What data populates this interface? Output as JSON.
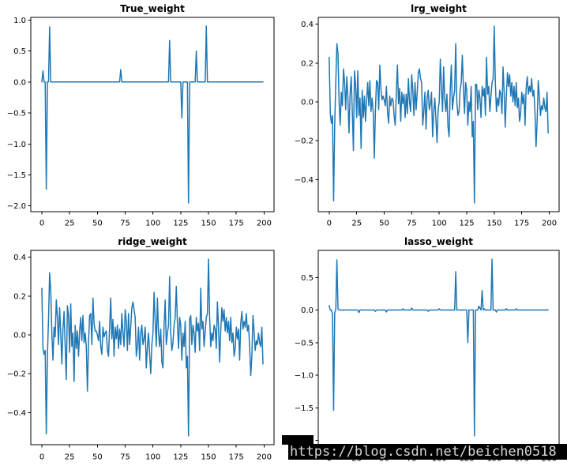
{
  "figure": {
    "background": "#ffffff"
  },
  "watermark": {
    "text": "https://blog.csdn.net/beichen0518",
    "bar_color": "#000000",
    "text_color": "#d6d6d6"
  },
  "chart_data": [
    {
      "key": "true-weight",
      "type": "line",
      "title": "True_weight",
      "xlabel": "",
      "ylabel": "",
      "color": "#1f77b4",
      "grid": false,
      "legend": null,
      "n_points": 200,
      "xlim": [
        -9.95,
        208.95
      ],
      "ylim": [
        -2.0925,
        1.0425
      ],
      "xticks": [
        0,
        25,
        50,
        75,
        100,
        125,
        150,
        175,
        200
      ],
      "yticks": [
        1.0,
        0.5,
        0.0,
        -0.5,
        -1.0,
        -1.5,
        -2.0
      ],
      "values": [
        0,
        0.18,
        0,
        0,
        -1.73,
        0,
        0,
        0.89,
        0,
        0,
        0,
        0,
        0,
        0,
        0,
        0,
        0,
        0,
        0,
        0,
        0,
        0,
        0,
        0,
        0,
        0,
        0,
        0,
        0,
        0,
        0,
        0,
        0,
        0,
        0,
        0,
        0,
        0,
        0,
        0,
        0,
        0,
        0,
        0,
        0,
        0,
        0,
        0,
        0,
        0,
        0,
        0,
        0,
        0,
        0,
        0,
        0,
        0,
        0,
        0,
        0,
        0,
        0,
        0,
        0,
        0,
        0,
        0,
        0,
        0,
        0,
        0.2,
        0,
        0,
        0,
        0,
        0,
        0,
        0,
        0,
        0,
        0,
        0,
        0,
        0,
        0,
        0,
        0,
        0,
        0,
        0,
        0,
        0,
        0,
        0,
        0,
        0,
        0,
        0,
        0,
        0,
        0,
        0,
        0,
        0,
        0,
        0,
        0,
        0,
        0,
        0,
        0,
        0,
        0,
        0,
        0.67,
        0,
        0,
        0,
        0,
        0,
        0,
        0,
        0,
        0,
        0,
        -0.58,
        0,
        0,
        0,
        0,
        0,
        -1.95,
        0,
        0,
        0,
        0,
        0,
        0,
        0.5,
        0,
        0,
        0,
        0,
        0,
        0,
        0,
        0,
        0.9,
        0,
        0,
        0,
        0,
        0,
        0,
        0,
        0,
        0,
        0,
        0,
        0,
        0,
        0,
        0,
        0,
        0,
        0,
        0,
        0,
        0,
        0,
        0,
        0,
        0,
        0,
        0,
        0,
        0,
        0,
        0,
        0,
        0,
        0,
        0,
        0,
        0,
        0,
        0,
        0,
        0,
        0,
        0,
        0,
        0,
        0,
        0,
        0,
        0,
        0,
        0
      ]
    },
    {
      "key": "lrg-weight",
      "type": "line",
      "title": "lrg_weight",
      "xlabel": "",
      "ylabel": "",
      "color": "#1f77b4",
      "grid": false,
      "legend": null,
      "n_points": 200,
      "xlim": [
        -9.95,
        208.95
      ],
      "ylim": [
        -0.5655,
        0.4355
      ],
      "xticks": [
        0,
        25,
        50,
        75,
        100,
        125,
        150,
        175,
        200
      ],
      "yticks": [
        0.4,
        0.2,
        0.0,
        -0.2,
        -0.4
      ],
      "values": [
        0.23,
        -0.06,
        -0.11,
        -0.07,
        -0.51,
        -0.12,
        0.1,
        0.3,
        0.25,
        0.0,
        -0.12,
        0.05,
        -0.02,
        0.17,
        0.1,
        -0.04,
        0.13,
        0.02,
        -0.16,
        0.04,
        0.13,
        -0.05,
        -0.25,
        0.16,
        0.09,
        -0.08,
        0.16,
        -0.07,
        0.02,
        -0.24,
        0.06,
        -0.08,
        0.03,
        -0.1,
        0.01,
        0.1,
        -0.02,
        0.11,
        -0.05,
        0.02,
        -0.05,
        -0.29,
        -0.05,
        0.11,
        0.1,
        -0.04,
        0.19,
        0.07,
        0.01,
        0.03,
        0.01,
        -0.02,
        0.08,
        -0.05,
        -0.11,
        0.03,
        -0.02,
        0.02,
        0.01,
        -0.07,
        -0.12,
        0.05,
        0.19,
        -0.01,
        0.07,
        -0.1,
        0.05,
        -0.01,
        0.04,
        -0.08,
        0.04,
        -0.06,
        0.12,
        0.0,
        -0.05,
        0.14,
        0.06,
        -0.07,
        0.1,
        -0.04,
        0.05,
        0.15,
        0.17,
        0.12,
        0.1,
        -0.12,
        -0.05,
        0.05,
        -0.14,
        0.02,
        0.06,
        -0.04,
        -0.01,
        0.05,
        -0.18,
        -0.05,
        0.02,
        -0.09,
        -0.21,
        -0.04,
        0.0,
        0.22,
        0.08,
        -0.05,
        0.18,
        0.02,
        -0.05,
        0.04,
        -0.13,
        -0.18,
        0.06,
        0.19,
        -0.04,
        0.02,
        0.06,
        0.3,
        0.0,
        -0.07,
        -0.05,
        0.06,
        0.1,
        0.24,
        0.07,
        -0.06,
        0.1,
        0.06,
        -0.12,
        0.0,
        -0.05,
        0.08,
        -0.18,
        -0.1,
        -0.52,
        0.09,
        0.09,
        -0.04,
        0.06,
        0.02,
        -0.08,
        0.08,
        0.03,
        0.07,
        -0.07,
        0.23,
        0.04,
        0.08,
        -0.05,
        0.03,
        0.1,
        0.12,
        0.39,
        0.1,
        -0.05,
        0.02,
        -0.02,
        0.06,
        0.04,
        -0.06,
        0.18,
        0.05,
        -0.13,
        0.03,
        0.15,
        0.08,
        0.14,
        0.03,
        0.1,
        0.0,
        0.08,
        -0.02,
        0.1,
        -0.03,
        0.02,
        -0.1,
        -0.06,
        0.05,
        -0.01,
        0.04,
        -0.12,
        0.07,
        0.13,
        0.04,
        0.08,
        0.05,
        0.12,
        0.03,
        0.06,
        -0.05,
        -0.23,
        -0.1,
        0.11,
        0.03,
        -0.07,
        -0.02,
        -0.04,
        0.02,
        -0.03,
        -0.05,
        0.05,
        -0.16
      ]
    },
    {
      "key": "ridge-weight",
      "type": "line",
      "title": "ridge_weight",
      "xlabel": "",
      "ylabel": "",
      "color": "#1f77b4",
      "grid": false,
      "legend": null,
      "n_points": 200,
      "xlim": [
        -9.95,
        208.95
      ],
      "ylim": [
        -0.5655,
        0.4355
      ],
      "xticks": [
        0,
        25,
        50,
        75,
        100,
        125,
        150,
        175,
        200
      ],
      "yticks": [
        0.4,
        0.2,
        0.0,
        -0.2,
        -0.4
      ],
      "values": [
        0.24,
        -0.07,
        -0.1,
        -0.08,
        -0.51,
        -0.11,
        0.08,
        0.32,
        0.23,
        0.01,
        -0.13,
        0.04,
        -0.01,
        0.18,
        0.09,
        -0.05,
        0.14,
        0.01,
        -0.15,
        0.03,
        0.12,
        -0.06,
        -0.23,
        0.15,
        0.1,
        -0.09,
        0.16,
        -0.06,
        0.01,
        -0.24,
        0.05,
        -0.07,
        0.02,
        -0.11,
        0.02,
        0.09,
        -0.03,
        0.1,
        -0.04,
        0.01,
        -0.06,
        -0.29,
        -0.04,
        0.1,
        0.11,
        -0.05,
        0.19,
        0.06,
        0.02,
        0.02,
        0.0,
        -0.03,
        0.07,
        -0.06,
        -0.1,
        0.04,
        -0.01,
        0.01,
        0.02,
        -0.08,
        -0.11,
        0.04,
        0.19,
        -0.02,
        0.08,
        -0.11,
        0.04,
        -0.02,
        0.05,
        -0.07,
        0.03,
        -0.05,
        0.11,
        0.01,
        -0.06,
        0.13,
        0.07,
        -0.08,
        0.11,
        -0.05,
        0.04,
        0.14,
        0.17,
        0.13,
        0.09,
        -0.11,
        -0.06,
        0.04,
        -0.13,
        0.01,
        0.05,
        -0.05,
        -0.02,
        0.04,
        -0.17,
        -0.06,
        0.01,
        -0.1,
        -0.2,
        -0.05,
        0.01,
        0.22,
        0.07,
        -0.06,
        0.19,
        0.01,
        -0.06,
        0.03,
        -0.14,
        -0.17,
        0.05,
        0.18,
        -0.05,
        0.01,
        0.05,
        0.3,
        0.01,
        -0.08,
        -0.04,
        0.05,
        0.09,
        0.25,
        0.06,
        -0.07,
        0.09,
        0.05,
        -0.13,
        0.01,
        -0.06,
        0.07,
        -0.17,
        -0.11,
        -0.52,
        0.08,
        0.1,
        -0.05,
        0.05,
        0.01,
        -0.09,
        0.09,
        0.02,
        0.06,
        -0.08,
        0.24,
        0.03,
        0.07,
        -0.06,
        0.02,
        0.09,
        0.11,
        0.39,
        0.09,
        -0.06,
        0.01,
        -0.03,
        0.05,
        0.03,
        -0.07,
        0.17,
        0.04,
        -0.14,
        0.02,
        0.14,
        0.07,
        0.13,
        0.02,
        0.09,
        0.01,
        0.07,
        -0.03,
        0.09,
        -0.04,
        0.01,
        -0.11,
        -0.07,
        0.04,
        -0.02,
        0.03,
        -0.13,
        0.06,
        0.12,
        0.03,
        0.07,
        0.04,
        0.11,
        0.02,
        0.05,
        -0.06,
        -0.21,
        -0.11,
        0.1,
        0.02,
        -0.08,
        -0.03,
        -0.05,
        0.01,
        -0.04,
        -0.06,
        0.04,
        -0.15
      ]
    },
    {
      "key": "lasso-weight",
      "type": "line",
      "title": "lasso_weight",
      "xlabel": "",
      "ylabel": "",
      "color": "#1f77b4",
      "grid": false,
      "legend": null,
      "n_points": 200,
      "xlim": [
        -9.95,
        208.95
      ],
      "ylim": [
        -2.0655,
        0.9155
      ],
      "xticks": [
        0,
        25,
        50,
        75,
        100,
        125,
        150,
        175,
        200
      ],
      "yticks": [
        0.5,
        0.0,
        -0.5,
        -1.0,
        -1.5,
        -2.0
      ],
      "values": [
        0.07,
        0,
        0,
        -0.06,
        -1.54,
        -0.04,
        0,
        0.77,
        0.02,
        0,
        0,
        0,
        0,
        0,
        0,
        0,
        0,
        0,
        0,
        0,
        0,
        0,
        0,
        0,
        0,
        0,
        0,
        -0.04,
        0,
        0,
        0,
        0,
        0,
        0,
        0,
        0,
        0,
        0,
        0,
        0,
        0,
        0,
        -0.02,
        0,
        0,
        0,
        0,
        0,
        0,
        0,
        0,
        0,
        -0.03,
        0,
        0,
        0,
        0,
        0,
        0,
        0,
        0,
        0,
        0,
        0,
        0,
        0,
        0,
        0.02,
        0,
        0,
        0,
        0,
        0,
        0,
        0,
        0.03,
        0,
        0,
        0,
        0,
        0,
        0,
        0,
        0,
        0,
        0,
        0,
        0,
        0,
        0,
        -0.02,
        0,
        0,
        0,
        0,
        0,
        0,
        0,
        0,
        0,
        0.02,
        0,
        0,
        0,
        0,
        0,
        0,
        0,
        0,
        0,
        0,
        0,
        0,
        0,
        0,
        0.59,
        0,
        0,
        0,
        0,
        0,
        0,
        0,
        0,
        0,
        0,
        -0.5,
        0,
        0,
        0,
        0,
        0,
        -1.93,
        0,
        0,
        0,
        0.06,
        0.03,
        0,
        0.3,
        0,
        0.02,
        0,
        0,
        0,
        0,
        0,
        0,
        0.78,
        0,
        0,
        0,
        -0.03,
        0,
        0,
        0,
        0,
        0,
        0,
        0,
        0,
        0.02,
        0,
        0,
        0,
        0,
        0,
        0,
        0,
        0,
        0.02,
        0,
        0,
        0,
        0,
        0,
        0,
        0,
        0,
        0,
        0,
        0,
        0,
        0,
        0,
        0,
        0,
        0,
        0,
        0,
        0,
        0,
        0,
        0,
        0,
        0,
        0,
        0,
        0,
        0
      ]
    }
  ]
}
